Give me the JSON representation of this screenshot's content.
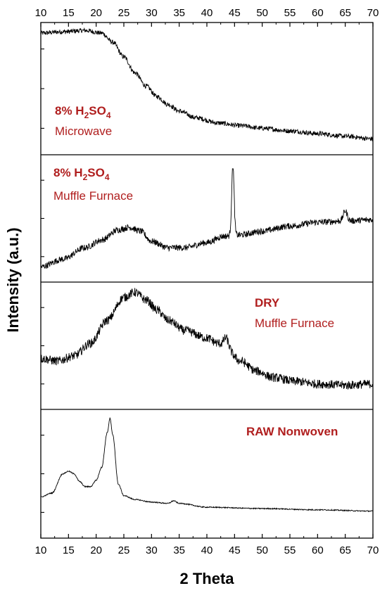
{
  "chart_data": {
    "type": "line",
    "xlabel": "2 Theta",
    "ylabel": "Intensity (a.u.)",
    "xlim": [
      10,
      70
    ],
    "x_ticks": [
      "10",
      "15",
      "20",
      "25",
      "30",
      "35",
      "40",
      "45",
      "50",
      "55",
      "60",
      "65",
      "70"
    ],
    "line_color": "#000000",
    "annotation_color": "#b01e1e",
    "grid": false,
    "panels": [
      {
        "label_line1": "8% H",
        "label_sub1": "2",
        "label_mid": "SO",
        "label_sub2": "4",
        "label_line2": "Microwave",
        "profile": [
          [
            10,
            0.92
          ],
          [
            14,
            0.93
          ],
          [
            18,
            0.94
          ],
          [
            21,
            0.92
          ],
          [
            23,
            0.85
          ],
          [
            25,
            0.74
          ],
          [
            27,
            0.62
          ],
          [
            29,
            0.52
          ],
          [
            31,
            0.44
          ],
          [
            33,
            0.38
          ],
          [
            35,
            0.33
          ],
          [
            38,
            0.28
          ],
          [
            42,
            0.24
          ],
          [
            46,
            0.22
          ],
          [
            50,
            0.2
          ],
          [
            55,
            0.18
          ],
          [
            60,
            0.16
          ],
          [
            65,
            0.14
          ],
          [
            70,
            0.12
          ]
        ],
        "noise": 0.018,
        "peaks": []
      },
      {
        "label_line1": "8% H",
        "label_sub1": "2",
        "label_mid": "SO",
        "label_sub2": "4",
        "label_line2": "Muffle Furnace",
        "profile": [
          [
            10,
            0.12
          ],
          [
            14,
            0.18
          ],
          [
            18,
            0.27
          ],
          [
            21,
            0.33
          ],
          [
            24,
            0.41
          ],
          [
            26,
            0.43
          ],
          [
            28,
            0.4
          ],
          [
            30,
            0.32
          ],
          [
            33,
            0.27
          ],
          [
            36,
            0.27
          ],
          [
            40,
            0.31
          ],
          [
            43,
            0.36
          ],
          [
            46,
            0.37
          ],
          [
            50,
            0.4
          ],
          [
            55,
            0.44
          ],
          [
            60,
            0.47
          ],
          [
            65,
            0.48
          ],
          [
            70,
            0.49
          ]
        ],
        "noise": 0.025,
        "peaks": [
          [
            44.7,
            0.55,
            0.22
          ],
          [
            65.0,
            0.08,
            0.35
          ]
        ]
      },
      {
        "label_line1": "DRY",
        "label_line2": "Muffle Furnace",
        "profile": [
          [
            10,
            0.4
          ],
          [
            13,
            0.38
          ],
          [
            16,
            0.42
          ],
          [
            19,
            0.52
          ],
          [
            22,
            0.7
          ],
          [
            25,
            0.88
          ],
          [
            27,
            0.92
          ],
          [
            29,
            0.86
          ],
          [
            31,
            0.78
          ],
          [
            33,
            0.7
          ],
          [
            36,
            0.62
          ],
          [
            40,
            0.56
          ],
          [
            42,
            0.52
          ],
          [
            44,
            0.45
          ],
          [
            46,
            0.38
          ],
          [
            49,
            0.3
          ],
          [
            52,
            0.25
          ],
          [
            56,
            0.22
          ],
          [
            60,
            0.2
          ],
          [
            65,
            0.19
          ],
          [
            70,
            0.2
          ]
        ],
        "noise": 0.035,
        "peaks": [
          [
            43.5,
            0.1,
            0.45
          ]
        ]
      },
      {
        "label_line1": "RAW Nonwoven",
        "profile": [
          [
            10,
            0.32
          ],
          [
            12,
            0.35
          ],
          [
            14,
            0.5
          ],
          [
            15,
            0.52
          ],
          [
            16,
            0.5
          ],
          [
            17,
            0.44
          ],
          [
            18,
            0.4
          ],
          [
            19,
            0.4
          ],
          [
            20,
            0.45
          ],
          [
            21,
            0.55
          ],
          [
            22,
            0.82
          ],
          [
            22.5,
            0.93
          ],
          [
            23,
            0.8
          ],
          [
            24,
            0.42
          ],
          [
            25,
            0.33
          ],
          [
            27,
            0.3
          ],
          [
            30,
            0.28
          ],
          [
            33,
            0.27
          ],
          [
            34,
            0.29
          ],
          [
            35,
            0.27
          ],
          [
            40,
            0.24
          ],
          [
            50,
            0.23
          ],
          [
            60,
            0.22
          ],
          [
            70,
            0.21
          ]
        ],
        "noise": 0.004,
        "peaks": []
      }
    ]
  }
}
